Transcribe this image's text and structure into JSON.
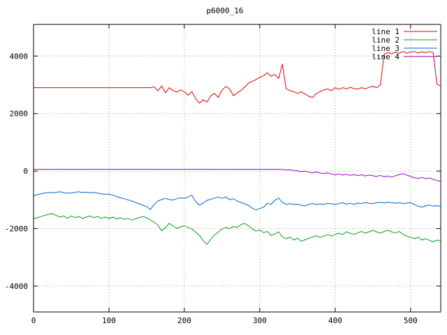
{
  "title": "p6000_16",
  "colors": {
    "background": "#ffffff",
    "border": "#000000",
    "grid": "#9a9a9a",
    "text": "#000000"
  },
  "chart_data": {
    "type": "line",
    "title": "p6000_16",
    "xlabel": "",
    "ylabel": "",
    "xlim": [
      0,
      540
    ],
    "ylim": [
      -4900,
      5100
    ],
    "x_ticks": [
      0,
      100,
      200,
      300,
      400,
      500
    ],
    "y_ticks": [
      -4000,
      -2000,
      0,
      2000,
      4000
    ],
    "grid": true,
    "grid_style": "dotted",
    "legend_position": "top-right",
    "x_start": 0,
    "x_step": 5,
    "series": [
      {
        "name": "line 1",
        "color": "#dd0000",
        "values": [
          2900,
          2900,
          2900,
          2900,
          2900,
          2900,
          2900,
          2900,
          2900,
          2900,
          2900,
          2900,
          2900,
          2900,
          2900,
          2900,
          2900,
          2900,
          2900,
          2900,
          2900,
          2900,
          2900,
          2900,
          2900,
          2900,
          2900,
          2900,
          2900,
          2900,
          2900,
          2900,
          2930,
          2790,
          2960,
          2720,
          2900,
          2800,
          2750,
          2820,
          2760,
          2640,
          2760,
          2520,
          2360,
          2480,
          2400,
          2620,
          2700,
          2560,
          2820,
          2940,
          2860,
          2620,
          2720,
          2800,
          2920,
          3060,
          3120,
          3180,
          3260,
          3320,
          3420,
          3300,
          3360,
          3220,
          3720,
          2860,
          2800,
          2760,
          2700,
          2760,
          2680,
          2600,
          2560,
          2700,
          2760,
          2820,
          2860,
          2800,
          2900,
          2840,
          2900,
          2860,
          2910,
          2870,
          2850,
          2900,
          2860,
          2910,
          2950,
          2900,
          3000,
          4060,
          4120,
          4080,
          4140,
          4100,
          4160,
          4100,
          4140,
          4160,
          4100,
          4150,
          4110,
          4160,
          4120,
          3020,
          2960
        ]
      },
      {
        "name": "line 2",
        "color": "#00a020",
        "values": [
          -1660,
          -1620,
          -1580,
          -1540,
          -1500,
          -1480,
          -1540,
          -1600,
          -1560,
          -1640,
          -1560,
          -1620,
          -1580,
          -1650,
          -1600,
          -1560,
          -1620,
          -1580,
          -1640,
          -1600,
          -1650,
          -1600,
          -1660,
          -1620,
          -1680,
          -1640,
          -1700,
          -1660,
          -1620,
          -1580,
          -1620,
          -1700,
          -1780,
          -1880,
          -2080,
          -1960,
          -1820,
          -1900,
          -2000,
          -1940,
          -1900,
          -1960,
          -2020,
          -2120,
          -2240,
          -2420,
          -2550,
          -2380,
          -2220,
          -2120,
          -2020,
          -1960,
          -2010,
          -1920,
          -1960,
          -1860,
          -1820,
          -1900,
          -2010,
          -2090,
          -2050,
          -2140,
          -2100,
          -2240,
          -2190,
          -2110,
          -2290,
          -2350,
          -2300,
          -2400,
          -2340,
          -2440,
          -2390,
          -2340,
          -2290,
          -2250,
          -2310,
          -2260,
          -2210,
          -2260,
          -2200,
          -2160,
          -2210,
          -2110,
          -2160,
          -2200,
          -2150,
          -2100,
          -2160,
          -2110,
          -2060,
          -2110,
          -2160,
          -2100,
          -2060,
          -2110,
          -2150,
          -2100,
          -2200,
          -2260,
          -2300,
          -2350,
          -2300,
          -2400,
          -2350,
          -2410,
          -2460,
          -2400,
          -2430
        ]
      },
      {
        "name": "line 3",
        "color": "#0066cc",
        "values": [
          -860,
          -820,
          -790,
          -760,
          -740,
          -760,
          -740,
          -720,
          -750,
          -770,
          -760,
          -740,
          -720,
          -750,
          -730,
          -760,
          -740,
          -770,
          -790,
          -810,
          -800,
          -840,
          -880,
          -930,
          -960,
          -1000,
          -1040,
          -1090,
          -1140,
          -1190,
          -1230,
          -1340,
          -1160,
          -1040,
          -990,
          -950,
          -990,
          -1010,
          -960,
          -930,
          -950,
          -900,
          -840,
          -1060,
          -1190,
          -1110,
          -1020,
          -980,
          -940,
          -900,
          -950,
          -900,
          -1000,
          -960,
          -1040,
          -1090,
          -1140,
          -1190,
          -1290,
          -1350,
          -1300,
          -1260,
          -1120,
          -1160,
          -1020,
          -940,
          -1090,
          -1160,
          -1130,
          -1160,
          -1150,
          -1190,
          -1210,
          -1160,
          -1130,
          -1160,
          -1140,
          -1160,
          -1120,
          -1140,
          -1160,
          -1130,
          -1100,
          -1150,
          -1120,
          -1160,
          -1110,
          -1130,
          -1100,
          -1120,
          -1130,
          -1100,
          -1090,
          -1110,
          -1080,
          -1100,
          -1120,
          -1100,
          -1130,
          -1110,
          -1100,
          -1160,
          -1220,
          -1260,
          -1210,
          -1180,
          -1220,
          -1200,
          -1230
        ]
      },
      {
        "name": "line 4",
        "color": "#a000c8",
        "values": [
          60,
          60,
          60,
          60,
          60,
          60,
          60,
          60,
          60,
          60,
          60,
          60,
          60,
          60,
          60,
          60,
          60,
          60,
          60,
          60,
          60,
          60,
          60,
          60,
          60,
          60,
          60,
          60,
          60,
          60,
          60,
          60,
          60,
          60,
          60,
          60,
          60,
          60,
          60,
          60,
          60,
          60,
          60,
          60,
          60,
          60,
          60,
          60,
          60,
          60,
          60,
          60,
          60,
          60,
          60,
          60,
          60,
          60,
          60,
          60,
          60,
          60,
          60,
          60,
          60,
          60,
          55,
          40,
          50,
          20,
          10,
          -20,
          0,
          -40,
          -60,
          -30,
          -70,
          -90,
          -60,
          -100,
          -130,
          -100,
          -140,
          -110,
          -150,
          -120,
          -160,
          -130,
          -170,
          -140,
          -160,
          -190,
          -150,
          -200,
          -170,
          -210,
          -160,
          -120,
          -90,
          -140,
          -190,
          -230,
          -260,
          -220,
          -270,
          -240,
          -290,
          -330,
          -350
        ]
      }
    ]
  }
}
